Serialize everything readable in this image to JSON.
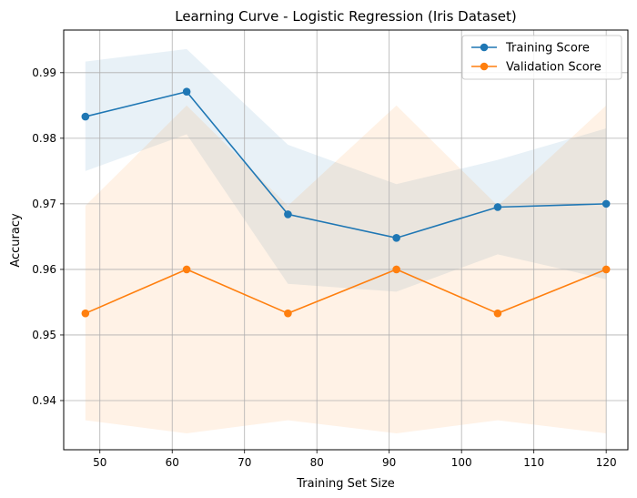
{
  "chart_data": {
    "type": "line",
    "title": "Learning Curve - Logistic Regression (Iris Dataset)",
    "xlabel": "Training Set Size",
    "ylabel": "Accuracy",
    "x": [
      48,
      62,
      76,
      91,
      105,
      120
    ],
    "xlim": [
      45,
      123
    ],
    "ylim": [
      0.9325,
      0.9965
    ],
    "xticks": [
      50,
      60,
      70,
      80,
      90,
      100,
      110,
      120
    ],
    "yticks": [
      0.94,
      0.95,
      0.96,
      0.97,
      0.98,
      0.99
    ],
    "grid": true,
    "legend_position": "top-right",
    "series": [
      {
        "name": "Training Score",
        "values": [
          0.9833,
          0.9871,
          0.9684,
          0.9648,
          0.9695,
          0.97
        ],
        "band_upper": [
          0.9917,
          0.9936,
          0.979,
          0.973,
          0.9767,
          0.9815
        ],
        "band_lower": [
          0.975,
          0.9806,
          0.9578,
          0.9566,
          0.9623,
          0.9585
        ],
        "color": "#1f77b4",
        "band_color": "#1f77b4"
      },
      {
        "name": "Validation Score",
        "values": [
          0.9533,
          0.96,
          0.9533,
          0.96,
          0.9533,
          0.96
        ],
        "band_upper": [
          0.9697,
          0.985,
          0.9697,
          0.985,
          0.9697,
          0.985
        ],
        "band_lower": [
          0.937,
          0.935,
          0.937,
          0.935,
          0.937,
          0.935
        ],
        "color": "#ff7f0e",
        "band_color": "#ff7f0e"
      }
    ]
  }
}
